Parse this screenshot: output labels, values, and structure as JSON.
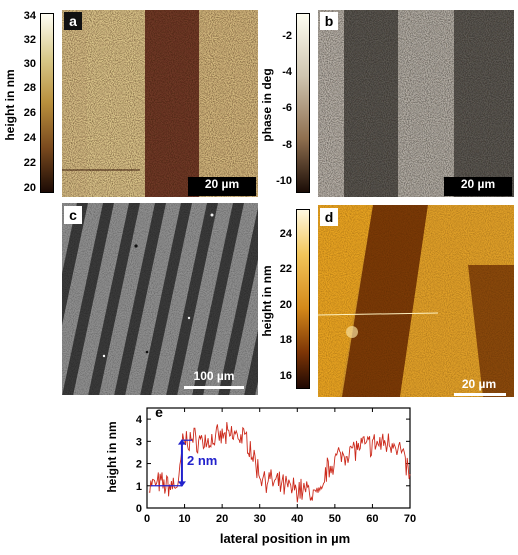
{
  "panels": {
    "a": {
      "letter": "a",
      "colorbar_label": "height in nm",
      "colorbar_ticks": [
        "34",
        "32",
        "30",
        "28",
        "26",
        "24",
        "22",
        "20"
      ],
      "scale": "20 µm"
    },
    "b": {
      "letter": "b",
      "colorbar_label": "phase in deg",
      "colorbar_ticks": [
        "-2",
        "-4",
        "-6",
        "-8",
        "-10"
      ],
      "scale": "20 µm"
    },
    "c": {
      "letter": "c",
      "scale": "100 µm"
    },
    "d": {
      "letter": "d",
      "colorbar_label": "height in nm",
      "colorbar_ticks": [
        "24",
        "22",
        "20",
        "18",
        "16"
      ],
      "scale": "20 µm"
    },
    "e": {
      "letter": "e",
      "annotation": "2 nm"
    }
  },
  "chart_data": {
    "type": "line",
    "xlabel": "lateral position in µm",
    "ylabel": "height in nm",
    "xlim": [
      0,
      70
    ],
    "ylim": [
      0,
      4.5
    ],
    "x_ticks": [
      "0",
      "10",
      "20",
      "30",
      "40",
      "50",
      "60",
      "70"
    ],
    "y_ticks": [
      "0",
      "1",
      "2",
      "3",
      "4"
    ],
    "series_color": "#cc2a1c",
    "profile": [
      {
        "x": 0.5,
        "y": 1.0
      },
      {
        "x": 3,
        "y": 1.1
      },
      {
        "x": 6,
        "y": 1.0
      },
      {
        "x": 8.5,
        "y": 1.1
      },
      {
        "x": 9.5,
        "y": 3.0
      },
      {
        "x": 12,
        "y": 3.1
      },
      {
        "x": 16,
        "y": 3.0
      },
      {
        "x": 20,
        "y": 3.2
      },
      {
        "x": 24,
        "y": 3.3
      },
      {
        "x": 27,
        "y": 3.0
      },
      {
        "x": 28.5,
        "y": 2.2
      },
      {
        "x": 30,
        "y": 1.5
      },
      {
        "x": 34,
        "y": 1.1
      },
      {
        "x": 38,
        "y": 0.9
      },
      {
        "x": 42,
        "y": 0.8
      },
      {
        "x": 45,
        "y": 0.6
      },
      {
        "x": 46.5,
        "y": 0.5
      },
      {
        "x": 47.5,
        "y": 1.6
      },
      {
        "x": 50,
        "y": 2.2
      },
      {
        "x": 54,
        "y": 2.6
      },
      {
        "x": 58,
        "y": 2.8
      },
      {
        "x": 62,
        "y": 2.9
      },
      {
        "x": 66,
        "y": 3.0
      },
      {
        "x": 68,
        "y": 2.4
      },
      {
        "x": 70,
        "y": 1.4
      }
    ]
  },
  "colors": {
    "afm_light": "#d6bf86",
    "afm_dark": "#6f3a26",
    "phase_light": "#b8b1a8",
    "phase_dark": "#5a5650",
    "sem_light": "#8f8f8f",
    "sem_dark": "#3b3b3b",
    "orange_light": "#e6a321",
    "orange_dark": "#7a3a06",
    "arrow": "#2222cc"
  }
}
